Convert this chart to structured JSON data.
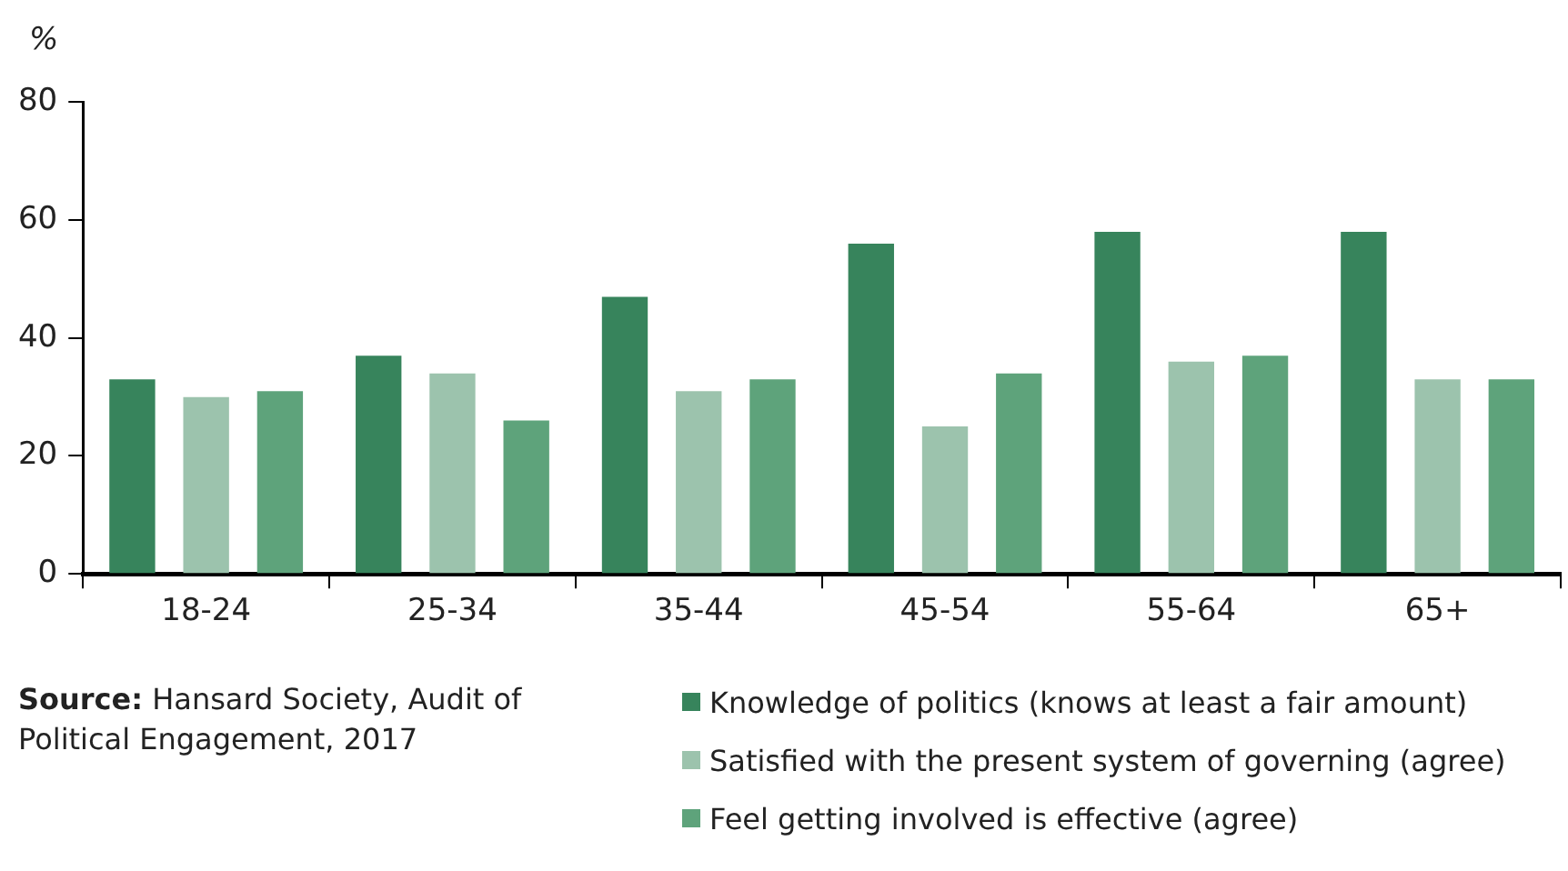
{
  "chart_data": {
    "type": "bar",
    "ylabel": "%",
    "categories": [
      "18-24",
      "25-34",
      "35-44",
      "45-54",
      "55-64",
      "65+"
    ],
    "series": [
      {
        "name": "Knowledge of politics (knows at least a fair amount)",
        "color": "#37845c",
        "values": [
          33,
          37,
          47,
          56,
          58,
          58
        ]
      },
      {
        "name": "Satisfied with the present system of governing (agree)",
        "color": "#9cc3ad",
        "values": [
          30,
          34,
          31,
          25,
          36,
          33
        ]
      },
      {
        "name": "Feel getting involved is effective (agree)",
        "color": "#5ea37b",
        "values": [
          31,
          26,
          33,
          34,
          37,
          33
        ]
      }
    ],
    "ylim": [
      0,
      80
    ],
    "yticks": [
      0,
      20,
      40,
      60,
      80
    ],
    "grid": false,
    "legend": "bottom right",
    "annotations": [
      "Source: Hansard Society, Audit of Political Engagement, 2017"
    ]
  }
}
